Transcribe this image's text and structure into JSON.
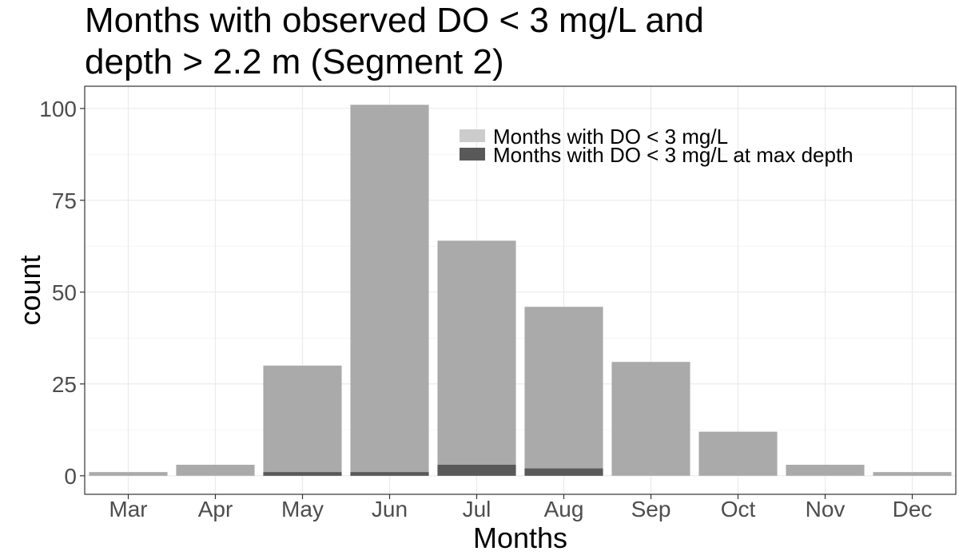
{
  "chart_data": {
    "type": "bar",
    "title_lines": [
      "Months with observed DO < 3 mg/L and",
      "depth > 2.2 m (Segment 2)"
    ],
    "xlabel": "Months",
    "ylabel": "count",
    "categories": [
      "Mar",
      "Apr",
      "May",
      "Jun",
      "Jul",
      "Aug",
      "Sep",
      "Oct",
      "Nov",
      "Dec"
    ],
    "series": [
      {
        "name": "Months with DO < 3 mg/L",
        "values": [
          1,
          3,
          30,
          101,
          64,
          46,
          31,
          12,
          3,
          1
        ],
        "color": "#aaaaaa"
      },
      {
        "name": "Months with DO < 3 mg/L at max depth",
        "values": [
          0,
          0,
          1,
          1,
          3,
          2,
          0,
          0,
          0,
          0
        ],
        "color": "#595959"
      }
    ],
    "yticks": [
      0,
      25,
      50,
      75,
      100
    ],
    "ylim": [
      -5.05,
      106.05
    ],
    "grid": true,
    "legend_position": "top-right",
    "legend_colors": [
      "#cccccc",
      "#595959"
    ]
  }
}
